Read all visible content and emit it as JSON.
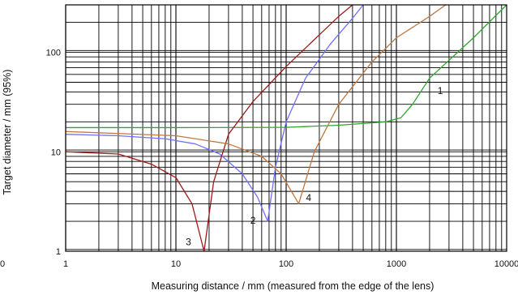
{
  "chart_data": {
    "type": "line",
    "xscale": "log",
    "yscale": "log",
    "xlim": [
      1,
      10000
    ],
    "ylim": [
      1,
      300
    ],
    "grid": true,
    "xlabel": "Measuring distance / mm (measured from the edge of the lens)",
    "ylabel": "Target diameter / mm (95%)",
    "xticks": [
      {
        "value": 1,
        "label": "1"
      },
      {
        "value": 10,
        "label": "10"
      },
      {
        "value": 100,
        "label": "100"
      },
      {
        "value": 1000,
        "label": "1000"
      },
      {
        "value": 10000,
        "label": "10000"
      }
    ],
    "yticks": [
      {
        "value": 1,
        "label": "1"
      },
      {
        "value": 10,
        "label": "10"
      },
      {
        "value": 100,
        "label": "100"
      }
    ],
    "origin_label": "0",
    "series": [
      {
        "name": "1",
        "color": "#2fa52f",
        "points": [
          [
            1,
            17.5
          ],
          [
            10,
            17.5
          ],
          [
            100,
            17.6
          ],
          [
            300,
            18.5
          ],
          [
            800,
            20
          ],
          [
            1100,
            22
          ],
          [
            1400,
            30
          ],
          [
            2000,
            55
          ],
          [
            5000,
            140
          ],
          [
            10000,
            300
          ]
        ]
      },
      {
        "name": "2",
        "color": "#7070ff",
        "points": [
          [
            1,
            15
          ],
          [
            3,
            14.5
          ],
          [
            8,
            13.5
          ],
          [
            15,
            12
          ],
          [
            25,
            9.5
          ],
          [
            40,
            6
          ],
          [
            55,
            3.5
          ],
          [
            68,
            2
          ],
          [
            80,
            7
          ],
          [
            100,
            20
          ],
          [
            150,
            55
          ],
          [
            250,
            120
          ],
          [
            400,
            220
          ],
          [
            500,
            300
          ]
        ]
      },
      {
        "name": "3",
        "color": "#a01818",
        "points": [
          [
            1,
            10
          ],
          [
            3,
            9.5
          ],
          [
            6,
            7.5
          ],
          [
            10,
            5.5
          ],
          [
            14,
            3
          ],
          [
            18,
            1
          ],
          [
            22,
            5
          ],
          [
            30,
            15
          ],
          [
            50,
            32
          ],
          [
            100,
            72
          ],
          [
            200,
            150
          ],
          [
            300,
            230
          ],
          [
            400,
            300
          ]
        ]
      },
      {
        "name": "4",
        "color": "#c07840",
        "points": [
          [
            1,
            16
          ],
          [
            10,
            14.5
          ],
          [
            30,
            12
          ],
          [
            60,
            9
          ],
          [
            90,
            6
          ],
          [
            130,
            3
          ],
          [
            180,
            10
          ],
          [
            300,
            30
          ],
          [
            600,
            80
          ],
          [
            1000,
            140
          ],
          [
            2000,
            230
          ],
          [
            2800,
            300
          ]
        ]
      }
    ],
    "annotations": [
      {
        "text": "1",
        "x": 2500,
        "y": 38
      },
      {
        "text": "2",
        "x": 50,
        "y": 1.9
      },
      {
        "text": "3",
        "x": 13,
        "y": 1.15
      },
      {
        "text": "4",
        "x": 160,
        "y": 3.2
      }
    ]
  }
}
